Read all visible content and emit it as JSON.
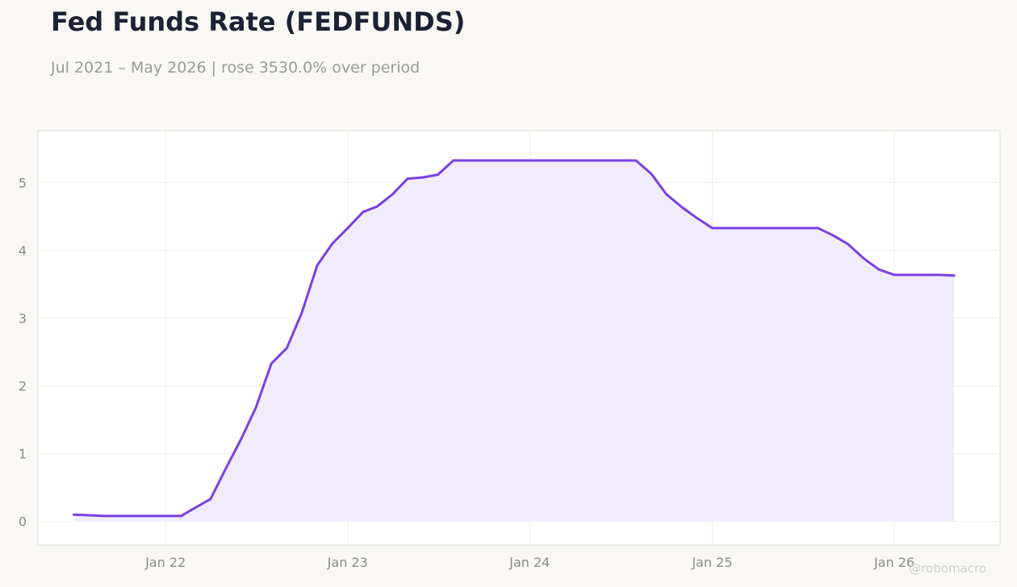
{
  "chart_data": {
    "type": "area",
    "title": "Fed Funds Rate (FEDFUNDS)",
    "subtitle": "Jul 2021 – May 2026 | rose 3530.0% over period",
    "xlabel": "",
    "ylabel": "",
    "ylim": [
      -0.35,
      5.77
    ],
    "yticks": [
      0,
      1,
      2,
      3,
      4,
      5
    ],
    "xticks": [
      {
        "date": "2022-01-01",
        "label": "Jan 22"
      },
      {
        "date": "2023-01-01",
        "label": "Jan 23"
      },
      {
        "date": "2024-01-01",
        "label": "Jan 24"
      },
      {
        "date": "2025-01-01",
        "label": "Jan 25"
      },
      {
        "date": "2026-01-01",
        "label": "Jan 26"
      }
    ],
    "xlim": [
      "2021-04-20",
      "2026-08-01"
    ],
    "grid": true,
    "legend": "none",
    "color": "#7b3fe4",
    "fill_color": "#f1ecfc",
    "series": [
      {
        "x": [
          "2021-07-01",
          "2021-08-01",
          "2021-09-01",
          "2021-10-01",
          "2021-11-01",
          "2021-12-01",
          "2022-01-01",
          "2022-02-01",
          "2022-03-01",
          "2022-04-01",
          "2022-05-01",
          "2022-06-01",
          "2022-07-01",
          "2022-08-01",
          "2022-09-01",
          "2022-10-01",
          "2022-11-01",
          "2022-12-01",
          "2023-01-01",
          "2023-02-01",
          "2023-03-01",
          "2023-04-01",
          "2023-05-01",
          "2023-06-01",
          "2023-07-01",
          "2023-08-01",
          "2023-09-01",
          "2023-10-01",
          "2023-11-01",
          "2023-12-01",
          "2024-01-01",
          "2024-02-01",
          "2024-03-01",
          "2024-04-01",
          "2024-05-01",
          "2024-06-01",
          "2024-07-01",
          "2024-08-01",
          "2024-09-01",
          "2024-10-01",
          "2024-11-01",
          "2024-12-01",
          "2025-01-01",
          "2025-02-01",
          "2025-03-01",
          "2025-04-01",
          "2025-05-01",
          "2025-06-01",
          "2025-07-01",
          "2025-08-01",
          "2025-09-01",
          "2025-10-01",
          "2025-11-01",
          "2025-12-01",
          "2026-01-01",
          "2026-02-01",
          "2026-03-01",
          "2026-04-01",
          "2026-05-01"
        ],
        "values": [
          0.1,
          0.09,
          0.08,
          0.08,
          0.08,
          0.08,
          0.08,
          0.08,
          0.2,
          0.33,
          0.77,
          1.21,
          1.68,
          2.33,
          2.56,
          3.08,
          3.78,
          4.1,
          4.33,
          4.57,
          4.65,
          4.83,
          5.06,
          5.08,
          5.12,
          5.33,
          5.33,
          5.33,
          5.33,
          5.33,
          5.33,
          5.33,
          5.33,
          5.33,
          5.33,
          5.33,
          5.33,
          5.33,
          5.13,
          4.83,
          4.64,
          4.48,
          4.33,
          4.33,
          4.33,
          4.33,
          4.33,
          4.33,
          4.33,
          4.33,
          4.22,
          4.09,
          3.88,
          3.72,
          3.64,
          3.64,
          3.64,
          3.64,
          3.63
        ]
      }
    ],
    "watermark": "@robomacro"
  }
}
